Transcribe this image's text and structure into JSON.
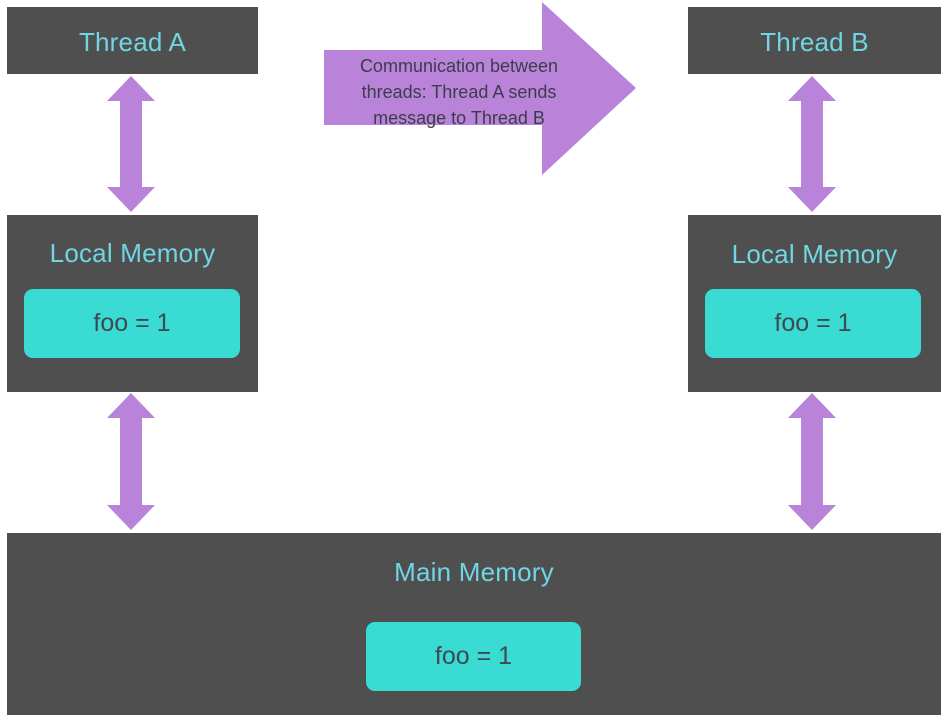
{
  "thread_a": {
    "title": "Thread A",
    "local_memory": {
      "title": "Local Memory",
      "variable": "foo = 1"
    }
  },
  "thread_b": {
    "title": "Thread B",
    "local_memory": {
      "title": "Local Memory",
      "variable": "foo = 1"
    }
  },
  "main_memory": {
    "title": "Main Memory",
    "variable": "foo = 1"
  },
  "communication_arrow": {
    "label": "Communication between threads: Thread A sends message to Thread B"
  },
  "colors": {
    "box_background": "#4f4f4f",
    "title_text": "#6fd6e3",
    "variable_box": "#39dbd3",
    "arrow": "#b983d9"
  },
  "icons": [
    "double-headed-arrow",
    "right-arrow"
  ]
}
